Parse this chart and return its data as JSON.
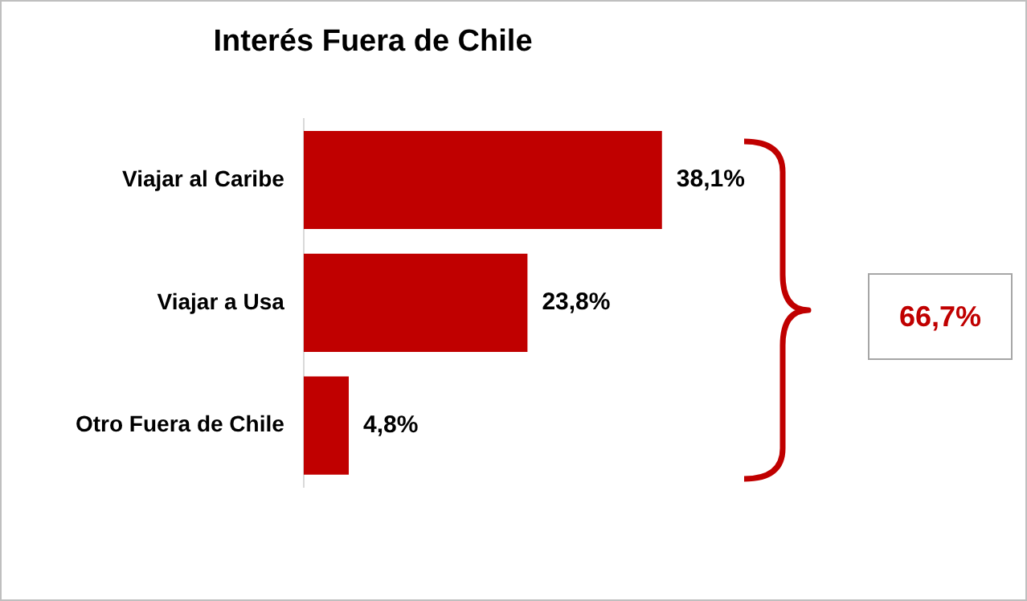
{
  "chart_data": {
    "type": "bar",
    "orientation": "horizontal",
    "title": "Interés Fuera de Chile",
    "categories": [
      "Viajar al Caribe",
      "Viajar a Usa",
      "Otro Fuera de Chile"
    ],
    "values": [
      38.1,
      23.8,
      4.8
    ],
    "color": "#c00000",
    "value_labels": [
      "38,1%",
      "23,8%",
      "4,8%"
    ],
    "annotations": [
      "66,7%"
    ],
    "legend": false
  }
}
